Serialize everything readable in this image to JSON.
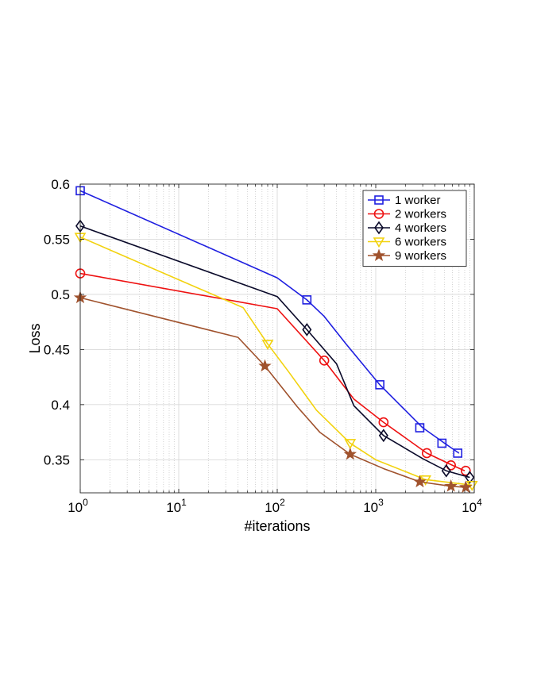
{
  "chart_data": {
    "type": "line",
    "title": "",
    "xlabel": "#iterations",
    "ylabel": "Loss",
    "xscale": "log",
    "xlim": [
      1,
      10000
    ],
    "ylim": [
      0.32,
      0.6
    ],
    "xticks": [
      {
        "value": 1,
        "base": "10",
        "exp": "0"
      },
      {
        "value": 10,
        "base": "10",
        "exp": "1"
      },
      {
        "value": 100,
        "base": "10",
        "exp": "2"
      },
      {
        "value": 1000,
        "base": "10",
        "exp": "3"
      },
      {
        "value": 10000,
        "base": "10",
        "exp": "4"
      }
    ],
    "yticks": [
      {
        "value": 0.35,
        "label": "0.35"
      },
      {
        "value": 0.4,
        "label": "0.4"
      },
      {
        "value": 0.45,
        "label": "0.45"
      },
      {
        "value": 0.5,
        "label": "0.5"
      },
      {
        "value": 0.55,
        "label": "0.55"
      },
      {
        "value": 0.6,
        "label": "0.6"
      }
    ],
    "grid": true,
    "legend_position": "top-right",
    "series": [
      {
        "name": "1 worker",
        "color": "#1f1fe0",
        "marker": "square",
        "x": [
          1,
          100,
          200,
          300,
          500,
          1100,
          3000,
          5000,
          7000
        ],
        "y": [
          0.594,
          0.515,
          0.495,
          0.48,
          0.455,
          0.418,
          0.379,
          0.365,
          0.356
        ],
        "marker_x": [
          1,
          200,
          1100,
          2800,
          4700,
          6800
        ],
        "marker_y": [
          0.594,
          0.495,
          0.418,
          0.379,
          0.365,
          0.356
        ]
      },
      {
        "name": "2 workers",
        "color": "#ee1111",
        "marker": "circle",
        "x": [
          1,
          100,
          300,
          600,
          1200,
          3300,
          6000,
          8000
        ],
        "y": [
          0.519,
          0.487,
          0.44,
          0.405,
          0.384,
          0.356,
          0.345,
          0.34
        ],
        "marker_x": [
          1,
          300,
          1200,
          3300,
          5800,
          8200
        ],
        "marker_y": [
          0.519,
          0.44,
          0.384,
          0.356,
          0.345,
          0.34
        ]
      },
      {
        "name": "4 workers",
        "color": "#0a0a2a",
        "marker": "diamond",
        "x": [
          1,
          100,
          200,
          400,
          600,
          1200,
          3000,
          5200,
          9000
        ],
        "y": [
          0.562,
          0.498,
          0.468,
          0.437,
          0.399,
          0.372,
          0.351,
          0.34,
          0.334
        ],
        "marker_x": [
          1,
          200,
          1200,
          5200,
          9000
        ],
        "marker_y": [
          0.562,
          0.468,
          0.372,
          0.34,
          0.334
        ]
      },
      {
        "name": "6 workers",
        "color": "#f2d20e",
        "marker": "triangle-down",
        "x": [
          1,
          45,
          80,
          130,
          250,
          550,
          1000,
          3200,
          9500
        ],
        "y": [
          0.552,
          0.488,
          0.455,
          0.43,
          0.395,
          0.365,
          0.35,
          0.332,
          0.327
        ],
        "marker_x": [
          1,
          80,
          550,
          3200,
          9500
        ],
        "marker_y": [
          0.552,
          0.455,
          0.365,
          0.332,
          0.327
        ]
      },
      {
        "name": "9 workers",
        "color": "#a0522d",
        "marker": "star",
        "x": [
          1,
          40,
          75,
          160,
          270,
          550,
          1200,
          2800,
          5800,
          8200
        ],
        "y": [
          0.497,
          0.461,
          0.435,
          0.398,
          0.375,
          0.355,
          0.342,
          0.33,
          0.326,
          0.325
        ],
        "marker_x": [
          1,
          75,
          550,
          2800,
          5800,
          8200
        ],
        "marker_y": [
          0.497,
          0.435,
          0.355,
          0.33,
          0.326,
          0.325
        ]
      }
    ]
  }
}
